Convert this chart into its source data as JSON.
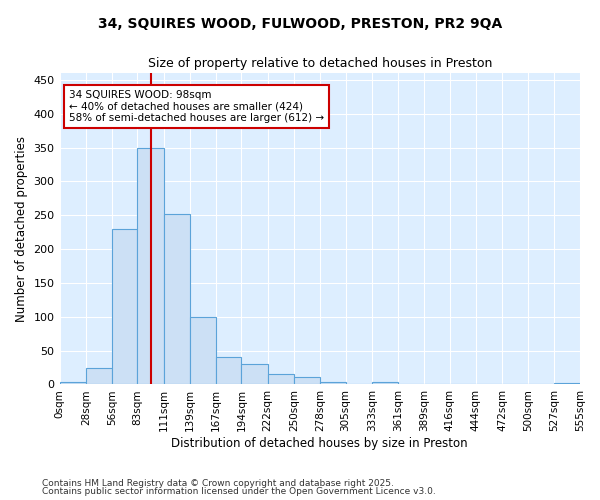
{
  "title1": "34, SQUIRES WOOD, FULWOOD, PRESTON, PR2 9QA",
  "title2": "Size of property relative to detached houses in Preston",
  "xlabel": "Distribution of detached houses by size in Preston",
  "ylabel": "Number of detached properties",
  "bin_labels": [
    "0sqm",
    "28sqm",
    "56sqm",
    "83sqm",
    "111sqm",
    "139sqm",
    "167sqm",
    "194sqm",
    "222sqm",
    "250sqm",
    "278sqm",
    "305sqm",
    "333sqm",
    "361sqm",
    "389sqm",
    "416sqm",
    "444sqm",
    "472sqm",
    "500sqm",
    "527sqm",
    "555sqm"
  ],
  "bin_edges": [
    0,
    28,
    56,
    83,
    111,
    139,
    167,
    194,
    222,
    250,
    278,
    305,
    333,
    361,
    389,
    416,
    444,
    472,
    500,
    527,
    555
  ],
  "bar_heights": [
    3,
    25,
    230,
    350,
    252,
    100,
    40,
    30,
    15,
    11,
    3,
    0,
    4,
    0,
    0,
    0,
    0,
    0,
    0,
    2
  ],
  "bar_color": "#cce0f5",
  "bar_edge_color": "#5ba3d9",
  "bar_edge_width": 0.8,
  "red_line_x": 98,
  "red_line_color": "#cc0000",
  "annotation_text": "34 SQUIRES WOOD: 98sqm\n← 40% of detached houses are smaller (424)\n58% of semi-detached houses are larger (612) →",
  "annotation_box_color": "#ffffff",
  "annotation_box_edge": "#cc0000",
  "ylim": [
    0,
    460
  ],
  "yticks": [
    0,
    50,
    100,
    150,
    200,
    250,
    300,
    350,
    400,
    450
  ],
  "footnote1": "Contains HM Land Registry data © Crown copyright and database right 2025.",
  "footnote2": "Contains public sector information licensed under the Open Government Licence v3.0.",
  "fig_bg_color": "#ffffff",
  "axes_bg": "#ddeeff",
  "grid_color": "#ffffff"
}
